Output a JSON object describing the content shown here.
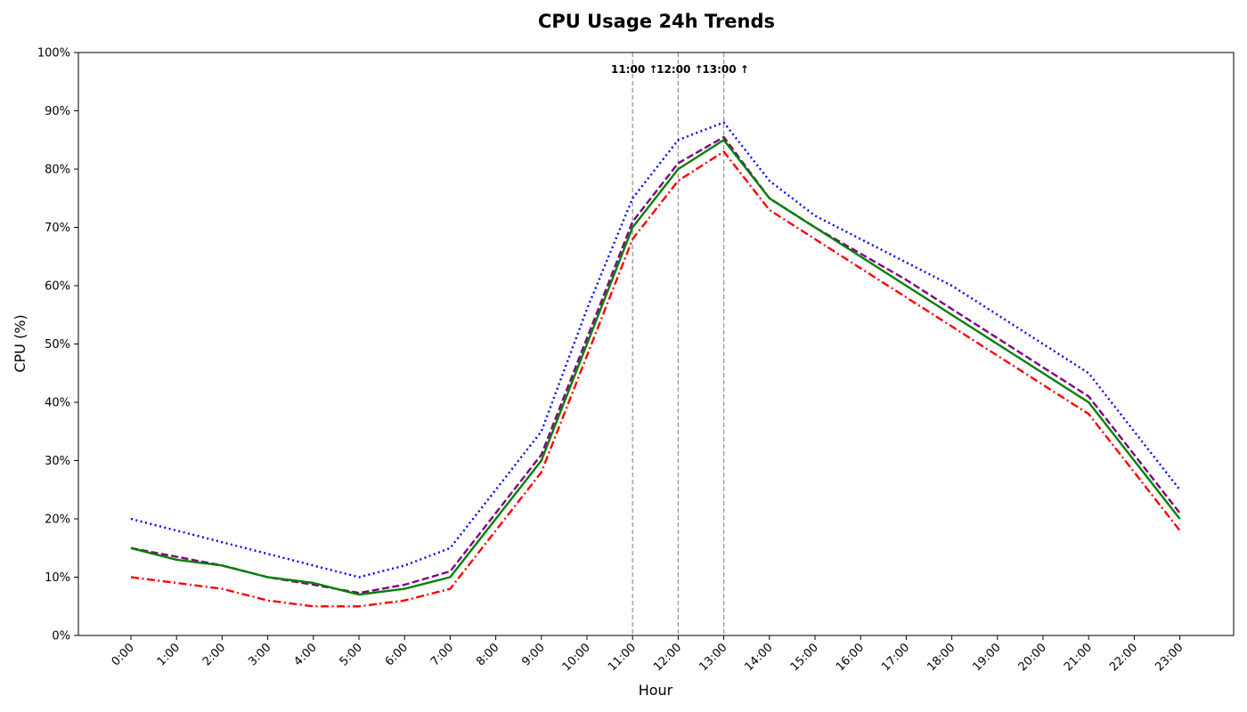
{
  "chart_data": {
    "type": "line",
    "title": "CPU Usage 24h Trends",
    "xlabel": "Hour",
    "ylabel": "CPU (%)",
    "ylim": [
      0,
      100
    ],
    "yticks": [
      "0%",
      "10%",
      "20%",
      "30%",
      "40%",
      "50%",
      "60%",
      "70%",
      "80%",
      "90%",
      "100%"
    ],
    "categories": [
      "0:00",
      "1:00",
      "2:00",
      "3:00",
      "4:00",
      "5:00",
      "6:00",
      "7:00",
      "8:00",
      "9:00",
      "10:00",
      "11:00",
      "12:00",
      "13:00",
      "14:00",
      "15:00",
      "16:00",
      "17:00",
      "18:00",
      "19:00",
      "20:00",
      "21:00",
      "22:00",
      "23:00"
    ],
    "grid": false,
    "series": [
      {
        "color": "#0000ff",
        "style": "dotted",
        "values": [
          20,
          18,
          16,
          14,
          12,
          10,
          12,
          15,
          25,
          35,
          56,
          75,
          85,
          88,
          78,
          72,
          68,
          64,
          60,
          55,
          50,
          45,
          35,
          25
        ]
      },
      {
        "color": "#ff0000",
        "style": "dashdot",
        "values": [
          10,
          9,
          8,
          6,
          5,
          5,
          6,
          8,
          18,
          28,
          48,
          68,
          78,
          83,
          73,
          68,
          63,
          58,
          53,
          48,
          43,
          38,
          28,
          18
        ]
      },
      {
        "color": "#800080",
        "style": "dashed",
        "values": [
          15,
          13.5,
          12,
          10,
          8.7,
          7.3,
          8.7,
          11,
          21,
          31,
          51,
          71,
          81,
          85.5,
          75,
          70,
          65.5,
          61,
          56,
          51,
          46,
          41,
          31,
          21
        ]
      },
      {
        "color": "#008000",
        "style": "solid",
        "values": [
          15,
          13,
          12,
          10,
          9,
          7,
          8,
          10,
          20,
          30,
          50,
          70,
          80,
          85,
          75,
          70,
          65,
          60,
          55,
          50,
          45,
          40,
          30,
          20
        ]
      }
    ],
    "annotations": [
      {
        "x": "11:00",
        "label": "11:00 ↑"
      },
      {
        "x": "12:00",
        "label": "12:00 ↑"
      },
      {
        "x": "13:00",
        "label": "13:00 ↑"
      }
    ]
  }
}
